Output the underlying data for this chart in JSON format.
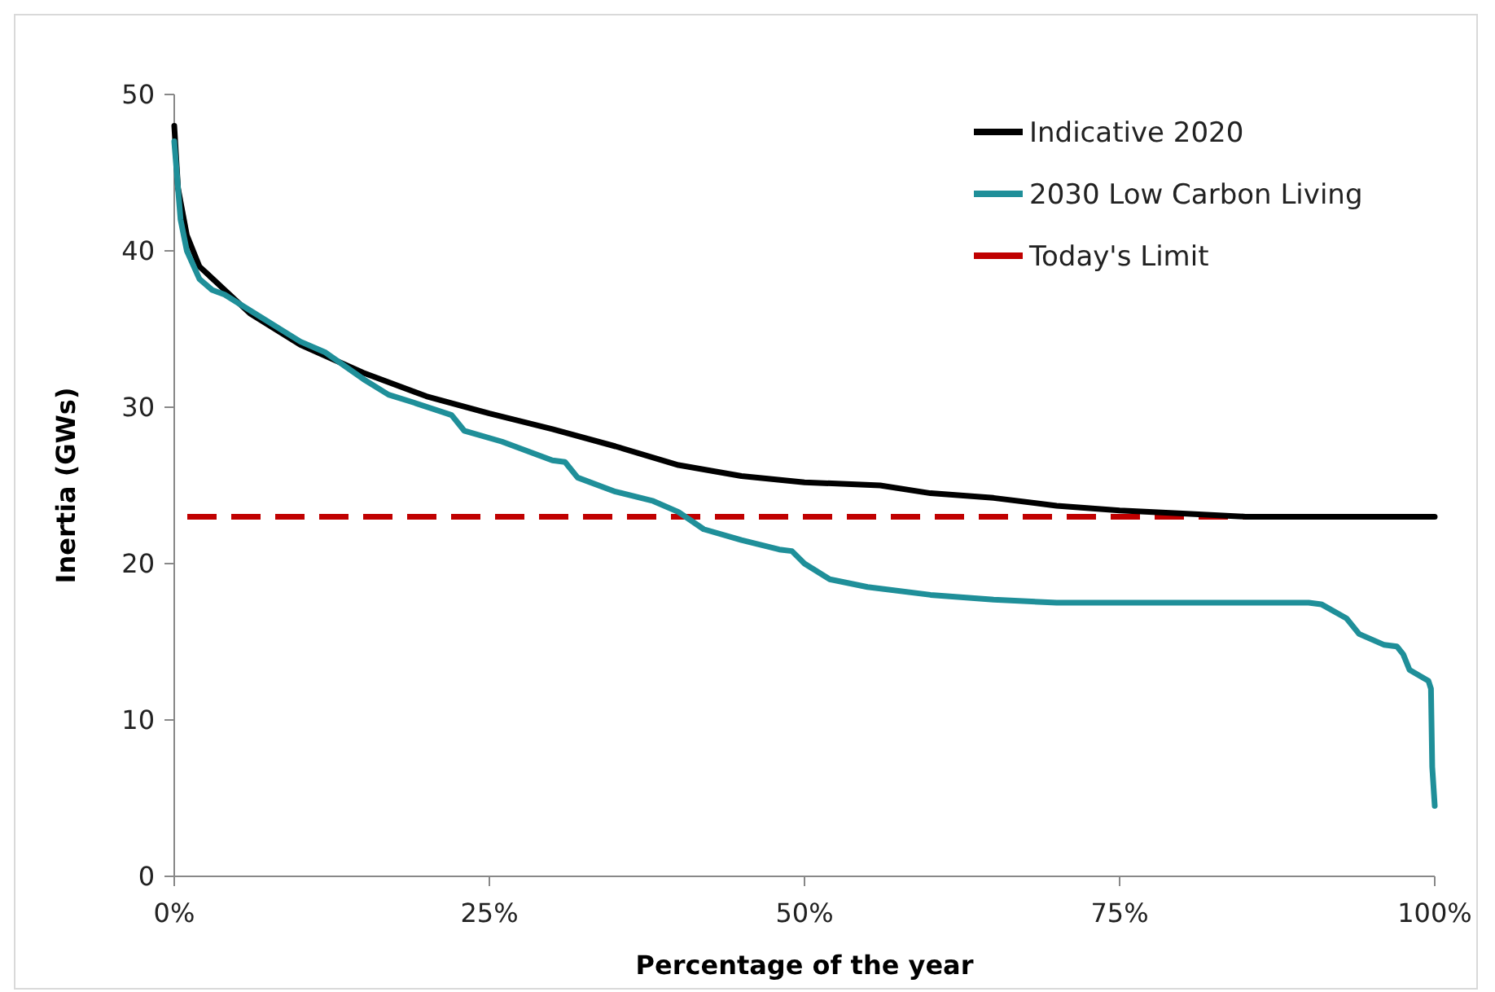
{
  "chart_data": {
    "type": "line",
    "xlabel": "Percentage of the year",
    "ylabel": "Inertia (GWs)",
    "xlim": [
      0,
      100
    ],
    "xticks": [
      {
        "value": 0,
        "label": "0%"
      },
      {
        "value": 25,
        "label": "25%"
      },
      {
        "value": 50,
        "label": "50%"
      },
      {
        "value": 75,
        "label": "75%"
      },
      {
        "value": 100,
        "label": "100%"
      }
    ],
    "ylim": [
      0,
      50
    ],
    "yticks": [
      0,
      10,
      20,
      30,
      40,
      50
    ],
    "grid": false,
    "legend": "top right",
    "series": [
      {
        "name": "Indicative 2020",
        "color": "#000000",
        "x": [
          0,
          0.3,
          1,
          2,
          4,
          6,
          10,
          15,
          20,
          25,
          30,
          35,
          40,
          45,
          50,
          56,
          60,
          65,
          70,
          75,
          80,
          85,
          100
        ],
        "values": [
          48,
          44,
          41,
          39,
          37.5,
          36,
          34,
          32.2,
          30.7,
          29.6,
          28.6,
          27.5,
          26.3,
          25.6,
          25.2,
          25,
          24.5,
          24.2,
          23.7,
          23.4,
          23.2,
          23,
          23
        ]
      },
      {
        "name": "2030 Low Carbon Living",
        "color": "#1f8f99",
        "x": [
          0,
          0.5,
          1,
          2,
          3,
          4,
          6,
          10,
          12,
          15,
          17,
          19,
          22,
          23,
          26,
          30,
          31,
          32,
          35,
          38,
          40,
          42,
          45,
          48,
          49,
          50,
          52,
          55,
          60,
          65,
          70,
          80,
          90,
          91,
          93,
          94,
          96,
          97,
          97.5,
          98,
          99.5,
          99.7,
          99.8,
          100
        ],
        "values": [
          47,
          42,
          40,
          38.2,
          37.5,
          37.2,
          36.2,
          34.2,
          33.5,
          31.8,
          30.8,
          30.3,
          29.5,
          28.5,
          27.8,
          26.6,
          26.5,
          25.5,
          24.6,
          24,
          23.3,
          22.2,
          21.5,
          20.9,
          20.8,
          20,
          19,
          18.5,
          18,
          17.7,
          17.5,
          17.5,
          17.5,
          17.4,
          16.5,
          15.5,
          14.8,
          14.7,
          14.2,
          13.2,
          12.5,
          12,
          7,
          4.5
        ]
      }
    ],
    "ref_lines": [
      {
        "axis": "y",
        "value": 23,
        "label": "Today's Limit",
        "color": "#c00000",
        "line_style": "dashed"
      }
    ]
  }
}
